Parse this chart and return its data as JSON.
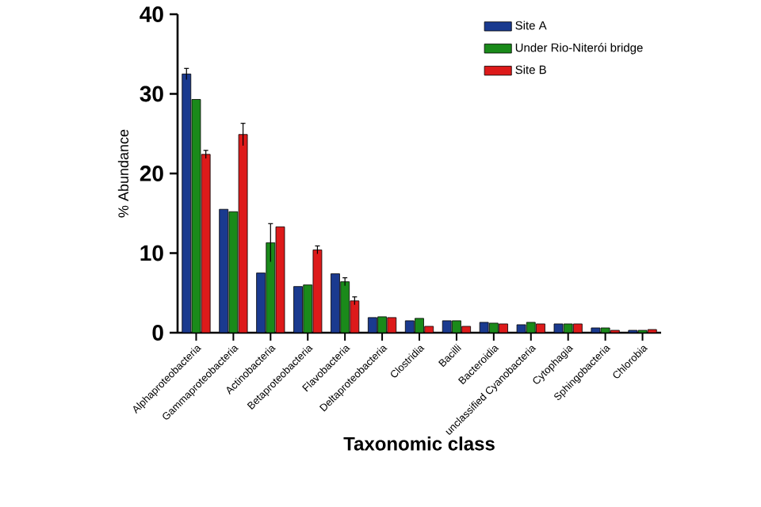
{
  "chart_data": {
    "type": "bar",
    "xlabel": "Taxonomic class",
    "ylabel": "% Abundance",
    "categories": [
      "Alphaproteobacteria",
      "Gammaproteobacteria",
      "Actinobacteria",
      "Betaproteobacteria",
      "Flavobacteria",
      "Deltaproteobacteria",
      "Clostridia",
      "Bacilli",
      "Bacteroidia",
      "unclassified Cyanobacteria",
      "Cytophagia",
      "Sphingobacteria",
      "Chlorobia"
    ],
    "series": [
      {
        "name": "Site A",
        "color": "#1a3a8f",
        "values": [
          32.5,
          15.5,
          7.5,
          5.8,
          7.4,
          1.9,
          1.5,
          1.5,
          1.3,
          1.0,
          1.1,
          0.6,
          0.3
        ],
        "errors": [
          0.7,
          null,
          null,
          null,
          null,
          null,
          null,
          null,
          null,
          null,
          null,
          null,
          null
        ]
      },
      {
        "name": "Under Rio-Niterói bridge",
        "color": "#1a8a1a",
        "values": [
          29.3,
          15.2,
          11.3,
          6.0,
          6.4,
          2.0,
          1.8,
          1.5,
          1.2,
          1.3,
          1.1,
          0.6,
          0.3
        ],
        "errors": [
          null,
          null,
          2.4,
          null,
          0.5,
          null,
          null,
          null,
          null,
          null,
          null,
          null,
          null
        ]
      },
      {
        "name": "Site B",
        "color": "#dd1a1a",
        "values": [
          22.4,
          24.9,
          13.3,
          10.4,
          4.0,
          1.9,
          0.8,
          0.8,
          1.1,
          1.1,
          1.1,
          0.3,
          0.4
        ],
        "errors": [
          0.5,
          1.4,
          null,
          0.5,
          0.5,
          null,
          null,
          null,
          null,
          null,
          null,
          null,
          null
        ]
      }
    ],
    "ylim": [
      0,
      40
    ],
    "yticks": [
      0,
      10,
      20,
      30,
      40
    ],
    "grid": false,
    "legend": "top right"
  }
}
